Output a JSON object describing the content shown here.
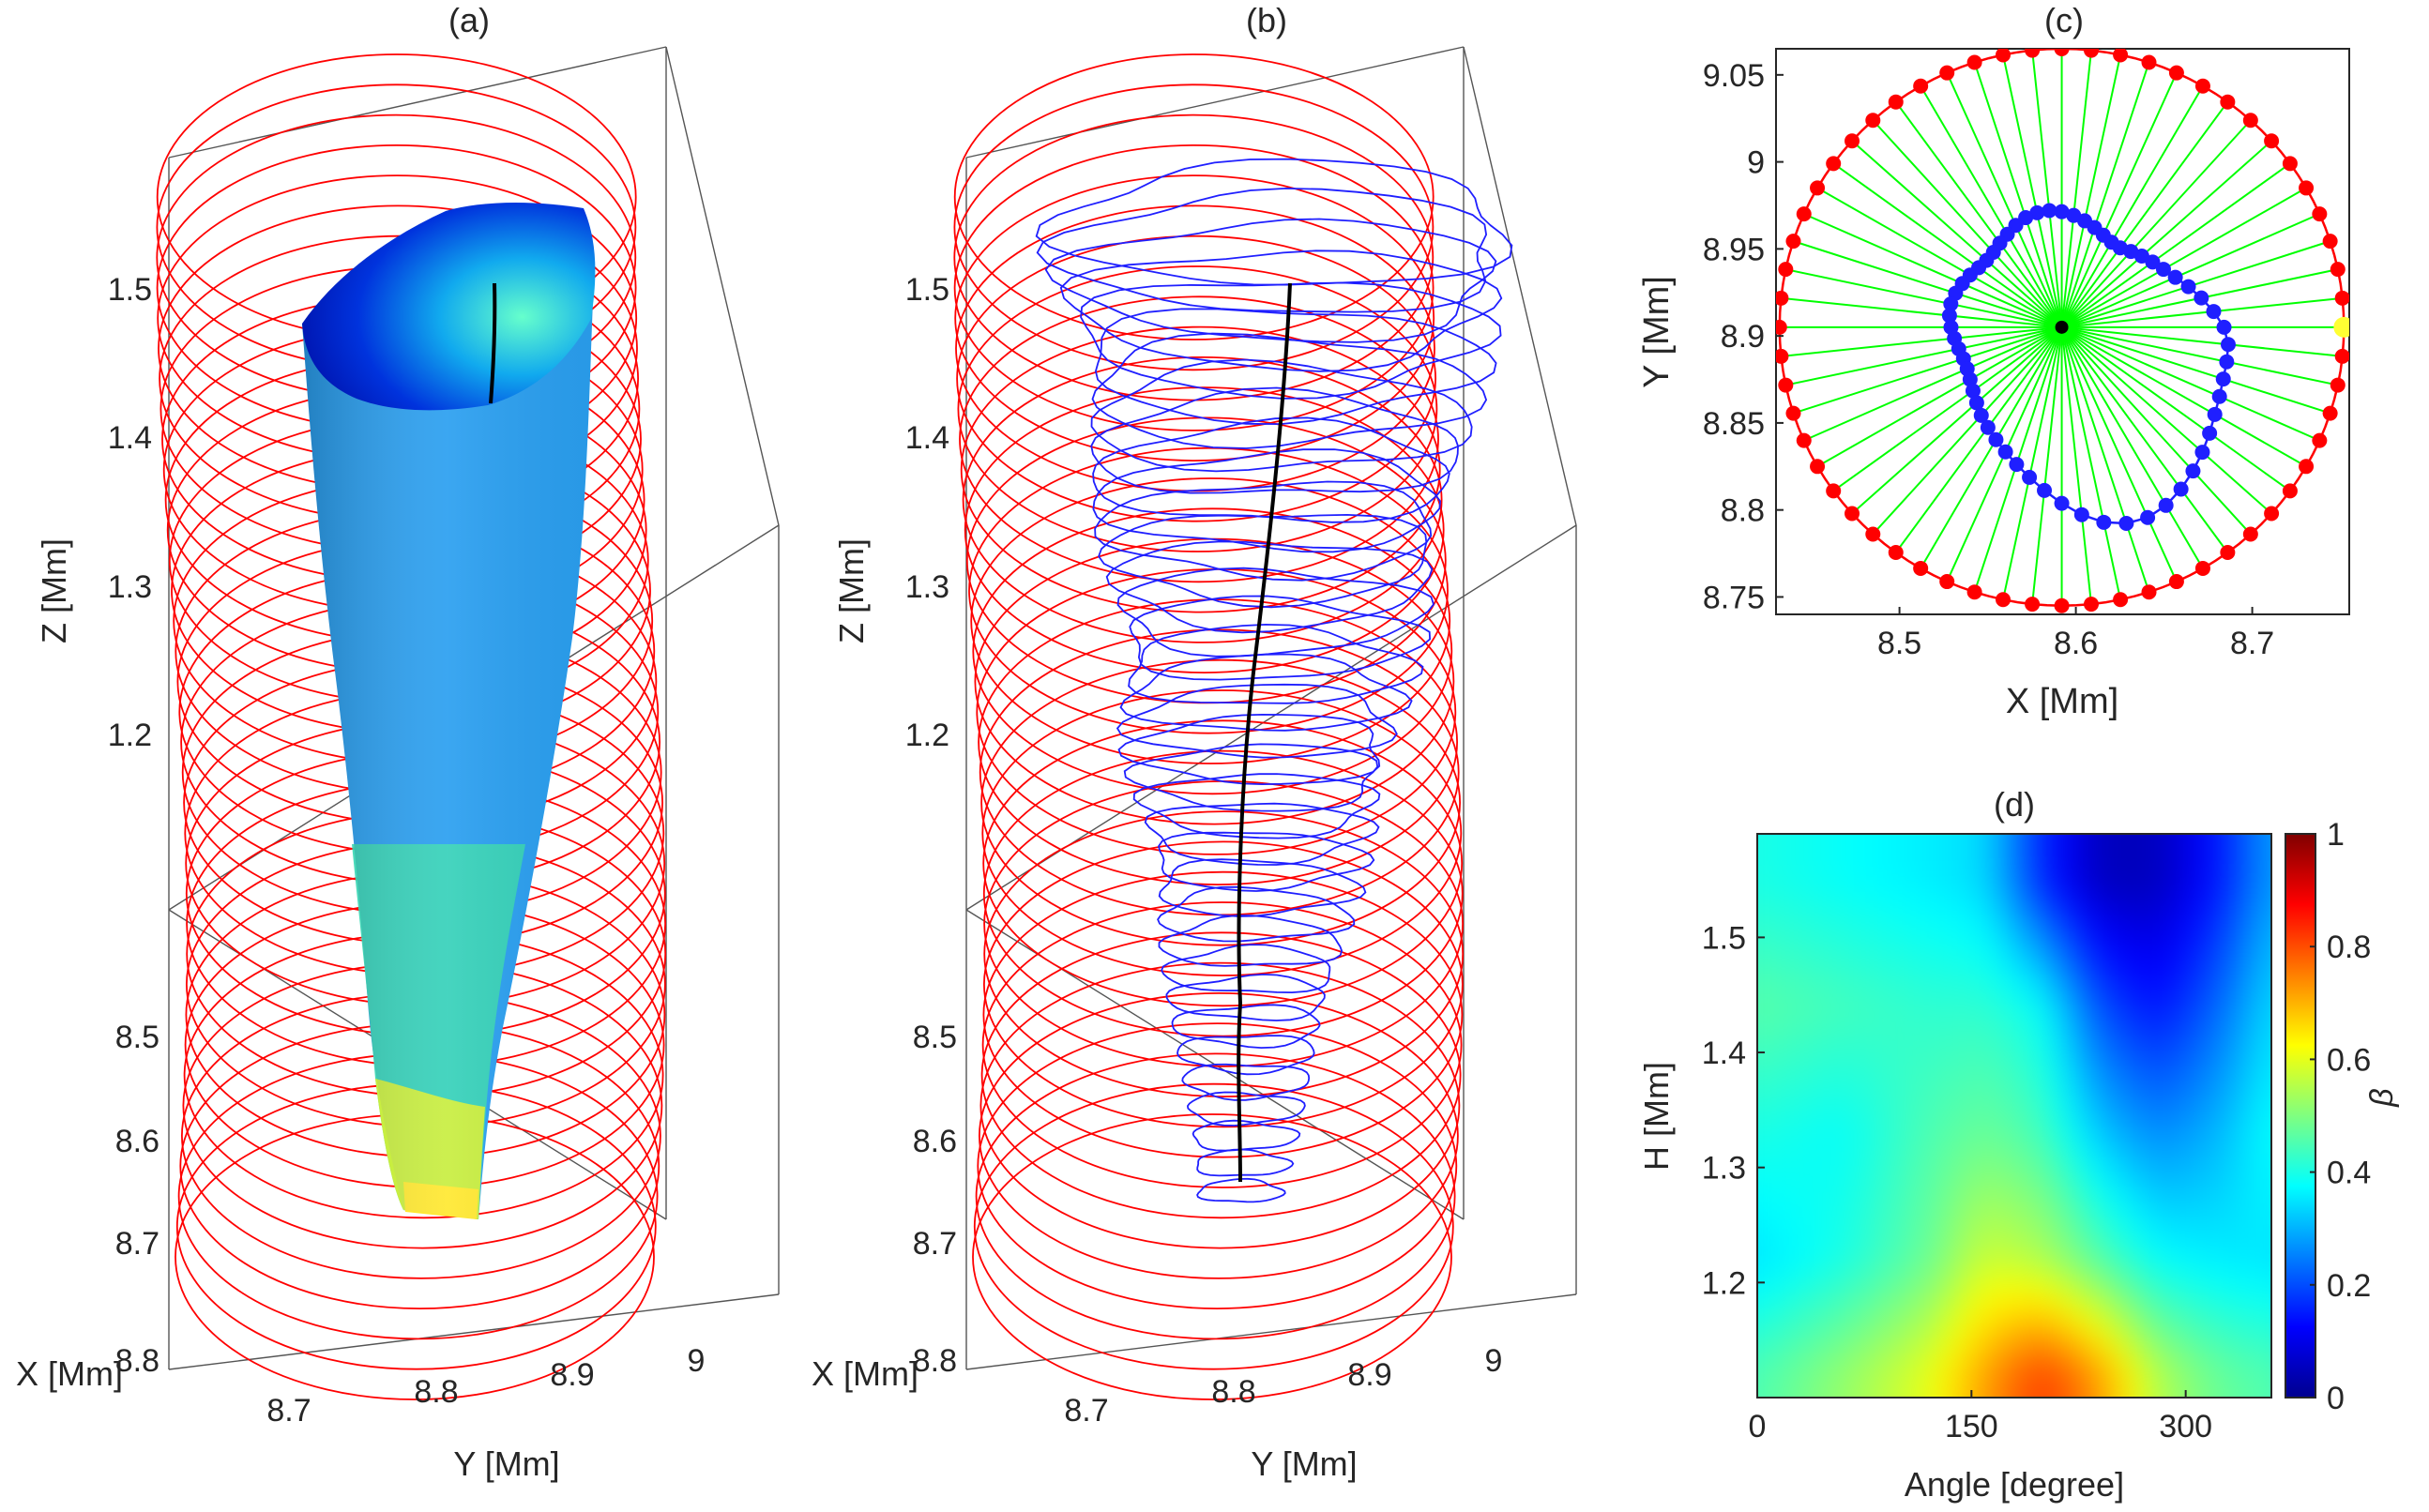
{
  "colors": {
    "ring": "#ff0000",
    "contour": "#1f1fff",
    "ray": "#00ff00",
    "axis_line": "#000000",
    "center": "#000000",
    "start_marker": "#ffff33",
    "box": "#444444",
    "text": "#262626"
  },
  "chart_data": [
    {
      "id": "a",
      "type": "surface3d",
      "title": "(a)",
      "xlabel": "X [Mm]",
      "ylabel": "Y [Mm]",
      "zlabel": "Z [Mm]",
      "x_ticks": [
        "8.5",
        "8.6",
        "8.7",
        "8.8"
      ],
      "y_ticks": [
        "8.7",
        "8.8",
        "8.9",
        "9"
      ],
      "z_ticks": [
        "1.2",
        "1.3",
        "1.4",
        "1.5"
      ],
      "n_rings": 36,
      "ring_z_range": [
        1.1,
        1.58
      ],
      "surface_colormap": "jet",
      "surface_beta_range": [
        0.12,
        0.75
      ]
    },
    {
      "id": "b",
      "type": "contour3d",
      "title": "(b)",
      "xlabel": "X [Mm]",
      "ylabel": "Y [Mm]",
      "zlabel": "Z [Mm]",
      "x_ticks": [
        "8.5",
        "8.6",
        "8.7",
        "8.8"
      ],
      "y_ticks": [
        "8.7",
        "8.8",
        "8.9",
        "9"
      ],
      "z_ticks": [
        "1.2",
        "1.3",
        "1.4",
        "1.5"
      ],
      "n_rings": 36,
      "n_contours": 36
    },
    {
      "id": "c",
      "type": "scatter",
      "title": "(c)",
      "xlabel": "X [Mm]",
      "ylabel": "Y [Mm]",
      "xlim": [
        8.43,
        8.755
      ],
      "ylim": [
        8.74,
        9.065
      ],
      "x_ticks": [
        8.5,
        8.6,
        8.7
      ],
      "x_tick_labels": [
        "8.5",
        "8.6",
        "8.7"
      ],
      "y_ticks": [
        8.75,
        8.8,
        8.85,
        8.9,
        8.95,
        9,
        9.05
      ],
      "y_tick_labels": [
        "8.75",
        "8.8",
        "8.85",
        "8.9",
        "8.95",
        "9",
        "9.05"
      ],
      "center": [
        8.592,
        8.905
      ],
      "circle_radius": 0.16,
      "n_points": 60,
      "boundary_radii": [
        0.092,
        0.0866,
        0.0809,
        0.0755,
        0.0705,
        0.0666,
        0.0637,
        0.0611,
        0.0586,
        0.0564,
        0.0564,
        0.0579,
        0.0602,
        0.0625,
        0.0646,
        0.0664,
        0.0674,
        0.0672,
        0.0662,
        0.0641,
        0.0617,
        0.0597,
        0.0579,
        0.0574,
        0.0582,
        0.06,
        0.0617,
        0.0633,
        0.0643,
        0.064,
        0.0628,
        0.0612,
        0.0597,
        0.0586,
        0.0587,
        0.06,
        0.0622,
        0.0649,
        0.0682,
        0.0712,
        0.0746,
        0.0784,
        0.0829,
        0.0882,
        0.0943,
        0.1012,
        0.1083,
        0.1146,
        0.1185,
        0.1197,
        0.1182,
        0.115,
        0.1112,
        0.1073,
        0.1036,
        0.1002,
        0.0979,
        0.0963,
        0.0956,
        0.0949
      ]
    },
    {
      "id": "d",
      "type": "heatmap",
      "title": "(d)",
      "xlabel": "Angle [degree]",
      "ylabel": "H [Mm]",
      "colorbar_label": "β",
      "xlim": [
        0,
        360
      ],
      "ylim": [
        1.1,
        1.59
      ],
      "x_ticks": [
        0,
        150,
        300
      ],
      "x_tick_labels": [
        "0",
        "150",
        "300"
      ],
      "y_ticks": [
        1.2,
        1.3,
        1.4,
        1.5
      ],
      "y_tick_labels": [
        "1.2",
        "1.3",
        "1.4",
        "1.5"
      ],
      "clim": [
        0,
        1
      ],
      "colorbar_ticks": [
        0,
        0.2,
        0.4,
        0.6,
        0.8,
        1
      ],
      "colorbar_tick_labels": [
        "0",
        "0.2",
        "0.4",
        "0.6",
        "0.8",
        "1"
      ],
      "colormap": "jet",
      "height_levels": [
        1.12,
        1.22,
        1.33,
        1.44,
        1.55
      ],
      "angle_levels": [
        0,
        60,
        120,
        160,
        200,
        240,
        280,
        320,
        360
      ],
      "beta_grid": [
        [
          0.45,
          0.52,
          0.6,
          0.72,
          0.82,
          0.72,
          0.55,
          0.48,
          0.45
        ],
        [
          0.35,
          0.4,
          0.48,
          0.58,
          0.55,
          0.46,
          0.38,
          0.36,
          0.35
        ],
        [
          0.4,
          0.38,
          0.45,
          0.48,
          0.44,
          0.32,
          0.26,
          0.3,
          0.38
        ],
        [
          0.46,
          0.44,
          0.42,
          0.42,
          0.38,
          0.2,
          0.14,
          0.22,
          0.34
        ],
        [
          0.4,
          0.38,
          0.36,
          0.34,
          0.16,
          0.06,
          0.06,
          0.14,
          0.28
        ]
      ]
    }
  ]
}
